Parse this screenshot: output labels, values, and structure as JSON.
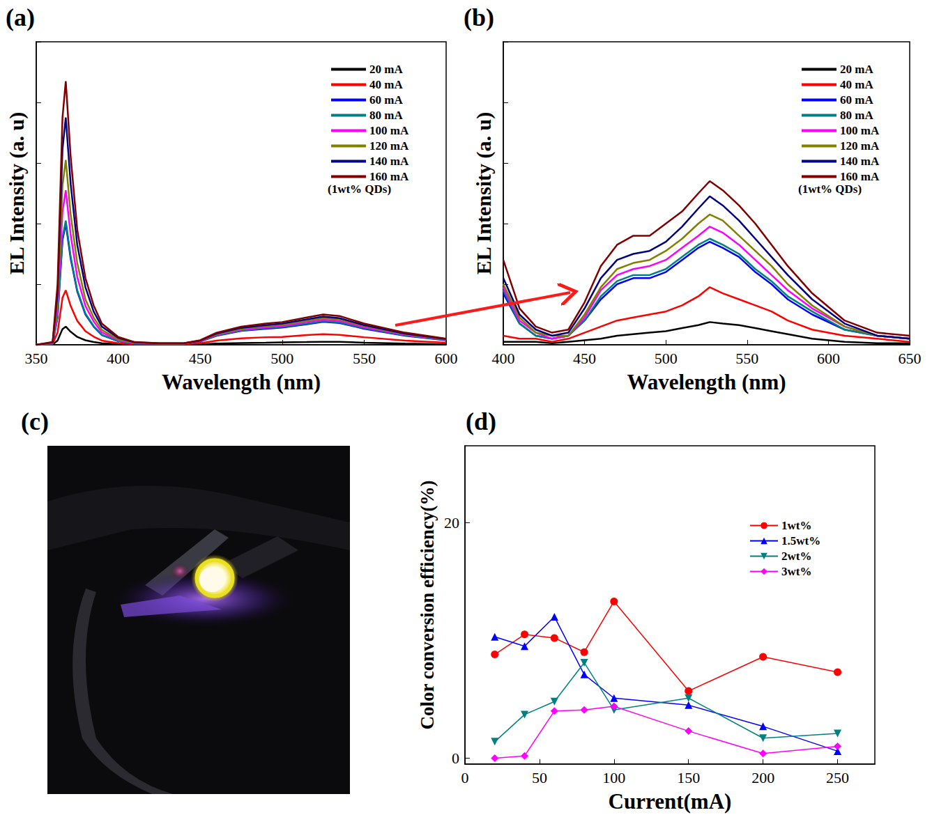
{
  "chart_data": [
    {
      "type": "line",
      "panel": "(a)",
      "x_label": "Wavelength (nm)",
      "y_label": "EL Intensity (a. u)",
      "annotation": "(1wt% QDs)",
      "legend": "upper right",
      "tick_labels": "x",
      "xlim": [
        350,
        600
      ],
      "xticks": [
        350,
        400,
        450,
        500,
        550,
        600
      ],
      "ylim": [
        0,
        100
      ],
      "yticks": [
        0,
        20,
        40,
        60,
        80,
        100
      ],
      "x": [
        350,
        360,
        363,
        366,
        368,
        371,
        375,
        380,
        385,
        390,
        400,
        410,
        425,
        440,
        450,
        460,
        475,
        490,
        500,
        515,
        525,
        535,
        550,
        575,
        600
      ],
      "series": [
        {
          "name": "20 mA",
          "color": "#000000",
          "values": [
            0,
            0.1,
            1.4,
            5.2,
            6,
            4.3,
            2.6,
            1.5,
            0.9,
            0.5,
            0.2,
            0.1,
            0.1,
            0.1,
            0.2,
            0.4,
            0.6,
            0.7,
            0.8,
            0.9,
            1,
            1,
            0.7,
            0.4,
            0.2
          ]
        },
        {
          "name": "40 mA",
          "color": "#ff0000",
          "values": [
            0,
            0.2,
            4.1,
            15.5,
            18,
            12.8,
            7.9,
            4.5,
            2.7,
            1.4,
            0.5,
            0.2,
            0.2,
            0.2,
            0.5,
            1.4,
            2.1,
            2.5,
            2.6,
            3.2,
            3.5,
            3.3,
            2.5,
            1.4,
            0.7
          ]
        },
        {
          "name": "60 mA",
          "color": "#0000ff",
          "values": [
            0,
            0.4,
            9.2,
            34.4,
            40,
            28.4,
            17.6,
            10,
            6,
            3.2,
            1.2,
            0.4,
            0.4,
            0.4,
            1.1,
            3,
            4.6,
            5.3,
            5.7,
            6.8,
            7.6,
            7.2,
            5.3,
            3,
            1.5
          ]
        },
        {
          "name": "80 mA",
          "color": "#008080",
          "values": [
            0,
            0.4,
            9.4,
            35.3,
            41,
            29.1,
            18,
            10.3,
            6.2,
            3.3,
            1.2,
            0.4,
            0.4,
            0.4,
            1.2,
            3.1,
            4.7,
            5.5,
            5.9,
            7,
            7.8,
            7.4,
            5.5,
            3.1,
            1.6
          ]
        },
        {
          "name": "100 mA",
          "color": "#ff00ff",
          "values": [
            0,
            0.5,
            11.7,
            43.9,
            51,
            36.2,
            22.4,
            12.8,
            7.7,
            4.1,
            1.5,
            0.5,
            0.4,
            0.4,
            1.2,
            3.3,
            5,
            5.8,
            6.2,
            7.5,
            8.3,
            7.9,
            5.8,
            3.3,
            1.7
          ]
        },
        {
          "name": "120 mA",
          "color": "#808000",
          "values": [
            0,
            0.6,
            14,
            52.5,
            61,
            43,
            27,
            15,
            9,
            4.9,
            1.8,
            0.6,
            0.4,
            0.4,
            1.3,
            3.5,
            5.3,
            6.2,
            6.6,
            7.9,
            8.8,
            8.4,
            6.2,
            3.5,
            1.8
          ]
        },
        {
          "name": "140 mA",
          "color": "#000080",
          "values": [
            0,
            0.8,
            17,
            64.5,
            75,
            53,
            33,
            19,
            11,
            6,
            2.3,
            0.8,
            0.5,
            0.5,
            1.4,
            3.7,
            5.6,
            6.5,
            7,
            8.4,
            9.3,
            8.8,
            6.5,
            3.7,
            1.9
          ]
        },
        {
          "name": "160 mA",
          "color": "#800000",
          "values": [
            0,
            0.9,
            20,
            75,
            87,
            62,
            38,
            22,
            13,
            7,
            2.6,
            0.9,
            0.5,
            0.5,
            1.5,
            4,
            6,
            7,
            7.5,
            9,
            10,
            9.5,
            7,
            4,
            2
          ]
        }
      ]
    },
    {
      "type": "line",
      "panel": "(b)",
      "x_label": "Wavelength (nm)",
      "y_label": "EL Intensity (a. u)",
      "annotation": "(1wt% QDs)",
      "legend": "upper right",
      "tick_labels": "x",
      "xlim": [
        400,
        650
      ],
      "xticks": [
        400,
        450,
        500,
        550,
        600,
        650
      ],
      "ylim": [
        0,
        100
      ],
      "yticks": [
        0,
        20,
        40,
        60,
        80,
        100
      ],
      "x": [
        400,
        410,
        420,
        430,
        440,
        450,
        460,
        470,
        480,
        490,
        500,
        510,
        520,
        527,
        535,
        545,
        555,
        565,
        575,
        590,
        610,
        630,
        650
      ],
      "series": [
        {
          "name": "20 mA",
          "color": "#000000",
          "values": [
            1,
            1,
            1,
            0.5,
            1,
            1.5,
            2,
            3,
            3.5,
            4,
            4.5,
            5.5,
            6.5,
            7.5,
            7,
            6.5,
            5.5,
            4.5,
            3.5,
            2,
            1,
            0.5,
            0.5
          ]
        },
        {
          "name": "40 mA",
          "color": "#ff0000",
          "values": [
            3,
            2,
            2,
            1,
            2,
            4,
            6,
            8,
            9,
            10,
            11,
            13,
            16,
            19,
            17,
            15,
            13,
            11,
            8,
            5,
            3,
            2,
            1
          ]
        },
        {
          "name": "60 mA",
          "color": "#0000ff",
          "values": [
            17,
            7,
            3,
            2,
            3,
            8,
            15,
            20,
            22,
            22,
            24,
            28,
            32,
            34,
            32,
            29,
            24,
            20,
            15,
            10,
            5,
            3,
            2
          ]
        },
        {
          "name": "80 mA",
          "color": "#008080",
          "values": [
            18,
            7,
            3,
            2,
            3,
            8,
            16,
            21,
            23,
            23,
            25,
            29,
            33,
            35,
            33,
            30,
            25,
            21,
            16,
            11,
            5,
            3,
            2
          ]
        },
        {
          "name": "100 mA",
          "color": "#ff00ff",
          "values": [
            19,
            8,
            4,
            2,
            3,
            9,
            18,
            23,
            25,
            26,
            28,
            32,
            36,
            39,
            37,
            33,
            28,
            23,
            18,
            12,
            6,
            3,
            2
          ]
        },
        {
          "name": "120 mA",
          "color": "#808000",
          "values": [
            20,
            9,
            4,
            3,
            3,
            10,
            19,
            25,
            27,
            28,
            31,
            35,
            40,
            43,
            41,
            36,
            31,
            26,
            20,
            13,
            6,
            3,
            2
          ]
        },
        {
          "name": "140 mA",
          "color": "#000080",
          "values": [
            22,
            10,
            5,
            3,
            4,
            12,
            22,
            28,
            30,
            31,
            34,
            39,
            45,
            49,
            46,
            41,
            35,
            29,
            23,
            15,
            7,
            3,
            2
          ]
        },
        {
          "name": "160 mA",
          "color": "#800000",
          "values": [
            28,
            12,
            6,
            4,
            5,
            14,
            26,
            33,
            36,
            36,
            40,
            44,
            50,
            54,
            51,
            46,
            40,
            33,
            26,
            17,
            8,
            4,
            3
          ]
        }
      ]
    },
    {
      "type": "image",
      "panel": "(c)"
    },
    {
      "type": "line",
      "panel": "(d)",
      "x_label": "Current(mA)",
      "y_label": "Color conversion efficiency(%)",
      "legend": "upper right",
      "xlim": [
        0,
        275
      ],
      "xticks": [
        0,
        50,
        100,
        150,
        200,
        250
      ],
      "ylim": [
        -0.5,
        26.5
      ],
      "yticks": [
        0,
        20
      ],
      "x": [
        20,
        40,
        60,
        80,
        100,
        150,
        200,
        250
      ],
      "series": [
        {
          "name": "1wt%",
          "color": "#ff0000",
          "marker": "circle",
          "values": [
            8.8,
            10.5,
            10.2,
            9.0,
            13.3,
            5.7,
            8.6,
            7.3
          ]
        },
        {
          "name": "1.5wt%",
          "color": "#0000ff",
          "marker": "triangle",
          "values": [
            10.3,
            9.5,
            12.0,
            7.1,
            5.1,
            4.5,
            2.7,
            0.6
          ]
        },
        {
          "name": "2wt%",
          "color": "#008080",
          "marker": "triangle-down",
          "values": [
            1.4,
            3.7,
            4.8,
            8.1,
            4.1,
            5.1,
            1.7,
            2.1
          ]
        },
        {
          "name": "3wt%",
          "color": "#ff00ff",
          "marker": "diamond",
          "values": [
            0,
            0.2,
            4.0,
            4.1,
            4.4,
            2.3,
            0.4,
            1.0
          ]
        }
      ]
    }
  ]
}
